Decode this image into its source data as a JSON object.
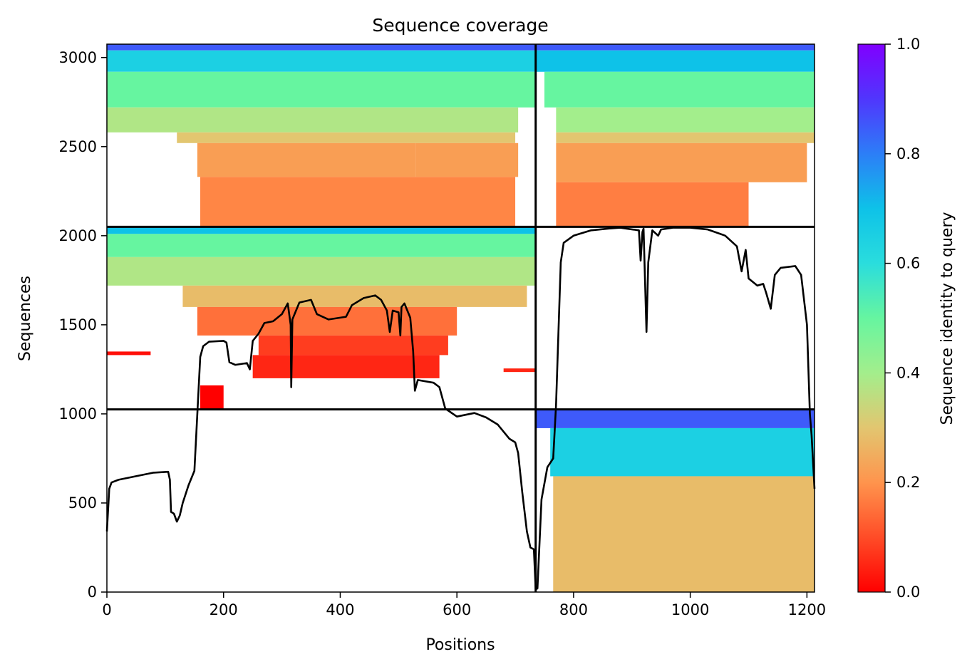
{
  "chart_data": {
    "type": "heatmap",
    "title": "Sequence coverage",
    "xlabel": "Positions",
    "ylabel": "Sequences",
    "xlim": [
      0,
      1213
    ],
    "ylim": [
      0,
      3075
    ],
    "xticks": [
      0,
      200,
      400,
      600,
      800,
      1000,
      1200
    ],
    "yticks": [
      0,
      500,
      1000,
      1500,
      2000,
      2500,
      3000
    ],
    "colorbar": {
      "label": "Sequence identity to query",
      "range": [
        0,
        1
      ],
      "ticks": [
        0.0,
        0.2,
        0.4,
        0.6,
        0.8,
        1.0
      ],
      "colormap": "rainbow_r"
    },
    "chain_boundary_x": 735,
    "block_boundaries_y": [
      1025,
      2050
    ],
    "blocks": [
      {
        "name": "upper-chain1",
        "y_range": [
          2050,
          3075
        ],
        "bands": [
          {
            "y": [
              3040,
              3075
            ],
            "x": [
              0,
              735
            ],
            "identity": 0.85
          },
          {
            "y": [
              2920,
              3040
            ],
            "x": [
              0,
              735
            ],
            "identity": 0.65
          },
          {
            "y": [
              2720,
              2920
            ],
            "x": [
              0,
              735
            ],
            "identity": 0.5
          },
          {
            "y": [
              2580,
              2720
            ],
            "x": [
              0,
              705
            ],
            "identity": 0.38
          },
          {
            "y": [
              2520,
              2580
            ],
            "x": [
              120,
              700
            ],
            "identity": 0.3
          },
          {
            "y": [
              2330,
              2520
            ],
            "x": [
              155,
              530
            ],
            "identity": 0.22
          },
          {
            "y": [
              2330,
              2520
            ],
            "x": [
              530,
              705
            ],
            "identity": 0.22
          },
          {
            "y": [
              2050,
              2330
            ],
            "x": [
              160,
              700
            ],
            "identity": 0.18
          }
        ]
      },
      {
        "name": "upper-chain2",
        "y_range": [
          2050,
          3075
        ],
        "bands": [
          {
            "y": [
              3040,
              3075
            ],
            "x": [
              735,
              1213
            ],
            "identity": 0.85
          },
          {
            "y": [
              2920,
              3040
            ],
            "x": [
              735,
              1213
            ],
            "identity": 0.7
          },
          {
            "y": [
              2720,
              2920
            ],
            "x": [
              750,
              1213
            ],
            "identity": 0.5
          },
          {
            "y": [
              2580,
              2720
            ],
            "x": [
              770,
              1213
            ],
            "identity": 0.4
          },
          {
            "y": [
              2520,
              2580
            ],
            "x": [
              770,
              1213
            ],
            "identity": 0.3
          },
          {
            "y": [
              2300,
              2520
            ],
            "x": [
              770,
              1200
            ],
            "identity": 0.22
          },
          {
            "y": [
              2050,
              2300
            ],
            "x": [
              770,
              1100
            ],
            "identity": 0.17
          }
        ]
      },
      {
        "name": "middle-chain1",
        "y_range": [
          1025,
          2050
        ],
        "bands": [
          {
            "y": [
              2010,
              2050
            ],
            "x": [
              0,
              735
            ],
            "identity": 0.7
          },
          {
            "y": [
              1880,
              2010
            ],
            "x": [
              0,
              735
            ],
            "identity": 0.5
          },
          {
            "y": [
              1720,
              1880
            ],
            "x": [
              0,
              735
            ],
            "identity": 0.38
          },
          {
            "y": [
              1600,
              1720
            ],
            "x": [
              130,
              720
            ],
            "identity": 0.28
          },
          {
            "y": [
              1440,
              1600
            ],
            "x": [
              155,
              600
            ],
            "identity": 0.15
          },
          {
            "y": [
              1330,
              1440
            ],
            "x": [
              260,
              585
            ],
            "identity": 0.08
          },
          {
            "y": [
              1200,
              1330
            ],
            "x": [
              250,
              570
            ],
            "identity": 0.05
          },
          {
            "y": [
              1020,
              1160
            ],
            "x": [
              160,
              200
            ],
            "identity": 0.0
          },
          {
            "y": [
              1330,
              1350
            ],
            "x": [
              0,
              75
            ],
            "identity": 0.02
          },
          {
            "y": [
              1235,
              1255
            ],
            "x": [
              680,
              735
            ],
            "identity": 0.05
          }
        ]
      },
      {
        "name": "lower-chain2",
        "y_range": [
          0,
          1025
        ],
        "bands": [
          {
            "y": [
              920,
              1025
            ],
            "x": [
              735,
              1213
            ],
            "identity": 0.85
          },
          {
            "y": [
              650,
              920
            ],
            "x": [
              760,
              1213
            ],
            "identity": 0.65
          },
          {
            "y": [
              0,
              650
            ],
            "x": [
              765,
              1213
            ],
            "identity": 0.28
          }
        ]
      }
    ],
    "coverage_line": {
      "name": "coverage",
      "points": [
        [
          0,
          340
        ],
        [
          4,
          580
        ],
        [
          8,
          615
        ],
        [
          20,
          630
        ],
        [
          50,
          650
        ],
        [
          80,
          670
        ],
        [
          105,
          675
        ],
        [
          108,
          630
        ],
        [
          110,
          450
        ],
        [
          115,
          440
        ],
        [
          120,
          395
        ],
        [
          125,
          430
        ],
        [
          130,
          500
        ],
        [
          140,
          600
        ],
        [
          150,
          680
        ],
        [
          155,
          1000
        ],
        [
          160,
          1320
        ],
        [
          165,
          1380
        ],
        [
          175,
          1405
        ],
        [
          200,
          1410
        ],
        [
          205,
          1400
        ],
        [
          210,
          1290
        ],
        [
          220,
          1275
        ],
        [
          240,
          1285
        ],
        [
          245,
          1250
        ],
        [
          250,
          1410
        ],
        [
          260,
          1450
        ],
        [
          270,
          1510
        ],
        [
          285,
          1520
        ],
        [
          300,
          1560
        ],
        [
          310,
          1620
        ],
        [
          315,
          1500
        ],
        [
          316,
          1150
        ],
        [
          318,
          1530
        ],
        [
          330,
          1625
        ],
        [
          350,
          1640
        ],
        [
          360,
          1560
        ],
        [
          380,
          1530
        ],
        [
          410,
          1545
        ],
        [
          420,
          1610
        ],
        [
          440,
          1650
        ],
        [
          460,
          1665
        ],
        [
          470,
          1640
        ],
        [
          480,
          1580
        ],
        [
          485,
          1460
        ],
        [
          490,
          1580
        ],
        [
          500,
          1570
        ],
        [
          503,
          1440
        ],
        [
          505,
          1600
        ],
        [
          510,
          1620
        ],
        [
          520,
          1540
        ],
        [
          525,
          1350
        ],
        [
          528,
          1130
        ],
        [
          533,
          1190
        ],
        [
          560,
          1175
        ],
        [
          570,
          1150
        ],
        [
          580,
          1030
        ],
        [
          600,
          985
        ],
        [
          630,
          1005
        ],
        [
          650,
          980
        ],
        [
          670,
          940
        ],
        [
          680,
          900
        ],
        [
          690,
          860
        ],
        [
          700,
          840
        ],
        [
          705,
          780
        ],
        [
          712,
          560
        ],
        [
          720,
          340
        ],
        [
          726,
          250
        ],
        [
          732,
          240
        ],
        [
          735,
          15
        ],
        [
          738,
          20
        ],
        [
          745,
          520
        ],
        [
          755,
          700
        ],
        [
          765,
          750
        ],
        [
          770,
          1050
        ],
        [
          778,
          1850
        ],
        [
          783,
          1960
        ],
        [
          800,
          2000
        ],
        [
          830,
          2030
        ],
        [
          860,
          2040
        ],
        [
          880,
          2045
        ],
        [
          890,
          2040
        ],
        [
          912,
          2030
        ],
        [
          915,
          1860
        ],
        [
          918,
          2020
        ],
        [
          920,
          2040
        ],
        [
          925,
          1460
        ],
        [
          928,
          1850
        ],
        [
          935,
          2030
        ],
        [
          945,
          2000
        ],
        [
          950,
          2035
        ],
        [
          970,
          2045
        ],
        [
          1000,
          2045
        ],
        [
          1030,
          2035
        ],
        [
          1060,
          2000
        ],
        [
          1080,
          1940
        ],
        [
          1088,
          1800
        ],
        [
          1095,
          1920
        ],
        [
          1100,
          1760
        ],
        [
          1115,
          1720
        ],
        [
          1125,
          1730
        ],
        [
          1130,
          1680
        ],
        [
          1138,
          1590
        ],
        [
          1145,
          1780
        ],
        [
          1155,
          1820
        ],
        [
          1180,
          1830
        ],
        [
          1190,
          1780
        ],
        [
          1200,
          1500
        ],
        [
          1205,
          1000
        ],
        [
          1208,
          880
        ],
        [
          1213,
          580
        ]
      ]
    }
  }
}
